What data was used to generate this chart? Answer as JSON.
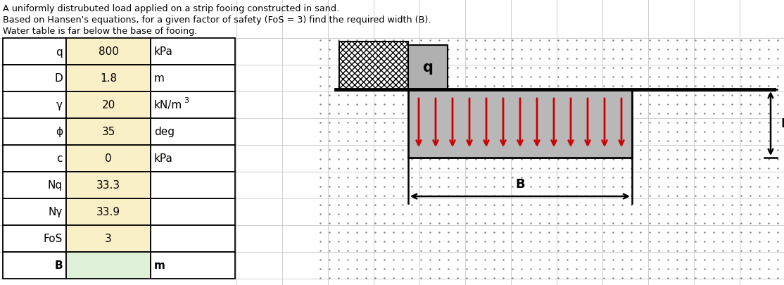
{
  "title1": "A uniformly distrubuted load applied on a strip fooing constructed in sand.",
  "title2": "Based on Hansen's equations, for a given factor of safety (FoS = 3) find the required width (B).",
  "title3": "Water table is far below the base of fooing.",
  "table_rows": [
    {
      "label": "q",
      "value": "800",
      "unit": "kPa",
      "label_bold": false,
      "value_bg": "#faf0c8",
      "unit_bg": "#ffffff"
    },
    {
      "label": "D",
      "value": "1.8",
      "unit": "m",
      "label_bold": false,
      "value_bg": "#faf0c8",
      "unit_bg": "#ffffff"
    },
    {
      "label": "γ",
      "value": "20",
      "unit": "kN/m3",
      "label_bold": false,
      "value_bg": "#faf0c8",
      "unit_bg": "#ffffff"
    },
    {
      "label": "ϕ",
      "value": "35",
      "unit": "deg",
      "label_bold": false,
      "value_bg": "#faf0c8",
      "unit_bg": "#ffffff"
    },
    {
      "label": "c",
      "value": "0",
      "unit": "kPa",
      "label_bold": false,
      "value_bg": "#faf0c8",
      "unit_bg": "#ffffff"
    },
    {
      "label": "Nq",
      "value": "33.3",
      "unit": "",
      "label_bold": false,
      "value_bg": "#faf0c8",
      "unit_bg": "#ffffff"
    },
    {
      "label": "Nγ",
      "value": "33.9",
      "unit": "",
      "label_bold": false,
      "value_bg": "#faf0c8",
      "unit_bg": "#ffffff"
    },
    {
      "label": "FoS",
      "value": "3",
      "unit": "",
      "label_bold": false,
      "value_bg": "#faf0c8",
      "unit_bg": "#ffffff"
    },
    {
      "label": "B",
      "value": "",
      "unit": "m",
      "label_bold": true,
      "value_bg": "#dff0d8",
      "unit_bg": "#ffffff"
    }
  ],
  "grid_color": "#c8c8c8",
  "border_color": "#000000",
  "sand_fg_color": "#808080",
  "footing_color": "#b8b8b8",
  "arrow_color": "#cc0000",
  "hatch_color": "#000000"
}
